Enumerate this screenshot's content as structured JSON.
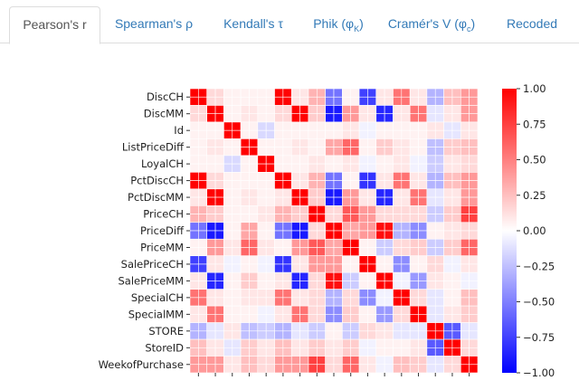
{
  "tabs": [
    {
      "label": "Pearson's r",
      "active": true
    },
    {
      "label": "Spearman's ρ",
      "active": false
    },
    {
      "label": "Kendall's τ",
      "active": false
    },
    {
      "label": "Phik (φ",
      "sub": "K",
      "suffix": ")",
      "active": false
    },
    {
      "label": "Cramér's V (φ",
      "sub": "c",
      "suffix": ")",
      "active": false
    },
    {
      "label": "Recoded",
      "active": false
    }
  ],
  "colors": {
    "tab_link": "#337ab7",
    "tab_active": "#555555",
    "positive": "#ff0000",
    "neutral": "#ffffff",
    "negative": "#0000ff"
  },
  "chart_data": {
    "type": "heatmap",
    "title": "",
    "rows": [
      "DiscCH",
      "DiscMM",
      "Id",
      "ListPriceDiff",
      "LoyalCH",
      "PctDiscCH",
      "PctDiscMM",
      "PriceCH",
      "PriceDiff",
      "PriceMM",
      "SalePriceCH",
      "SalePriceMM",
      "SpecialCH",
      "SpecialMM",
      "STORE",
      "StoreID",
      "WeekofPurchase"
    ],
    "cells_per_variable": 2,
    "colorbar": {
      "min": -1.0,
      "max": 1.0,
      "ticks": [
        "1.00",
        "0.75",
        "0.50",
        "0.25",
        "0.00",
        "−0.25",
        "−0.50",
        "−0.75",
        "−1.00"
      ],
      "tick_values": [
        1.0,
        0.75,
        0.5,
        0.25,
        0.0,
        -0.25,
        -0.5,
        -0.75,
        -1.0
      ]
    },
    "colormap": "bwr",
    "grid": true,
    "matrix": [
      [
        1.0,
        0.15,
        0.05,
        0.05,
        0.05,
        0.99,
        0.1,
        0.3,
        -0.55,
        0.05,
        -0.75,
        0.1,
        0.55,
        0.1,
        -0.3,
        0.25,
        0.4
      ],
      [
        0.15,
        1.0,
        0.05,
        0.1,
        0.05,
        0.15,
        0.99,
        0.2,
        -0.9,
        0.4,
        0.1,
        -0.85,
        0.1,
        0.55,
        -0.1,
        0.1,
        0.4
      ],
      [
        0.05,
        0.05,
        1.0,
        0.05,
        -0.15,
        0.05,
        0.05,
        0.05,
        0.05,
        0.1,
        -0.05,
        0.05,
        0.05,
        0.05,
        0.1,
        -0.1,
        0.1
      ],
      [
        0.05,
        0.1,
        0.05,
        1.0,
        0.05,
        0.05,
        0.1,
        0.05,
        0.35,
        0.6,
        0.05,
        0.2,
        0.1,
        0.05,
        -0.25,
        0.2,
        0.25
      ],
      [
        0.05,
        0.05,
        -0.15,
        0.05,
        1.0,
        0.05,
        0.05,
        0.1,
        0.05,
        0.1,
        -0.05,
        0.05,
        0.1,
        -0.05,
        -0.2,
        0.1,
        0.15
      ],
      [
        0.99,
        0.15,
        0.05,
        0.05,
        0.05,
        1.0,
        0.1,
        0.3,
        -0.55,
        0.05,
        -0.8,
        0.1,
        0.55,
        0.1,
        -0.3,
        0.25,
        0.4
      ],
      [
        0.1,
        0.99,
        0.05,
        0.1,
        0.05,
        0.1,
        1.0,
        0.2,
        -0.9,
        0.4,
        0.1,
        -0.85,
        0.1,
        0.55,
        -0.1,
        0.1,
        0.4
      ],
      [
        0.3,
        0.2,
        0.05,
        0.05,
        0.1,
        0.3,
        0.2,
        1.0,
        0.15,
        0.65,
        0.4,
        0.15,
        0.15,
        0.15,
        -0.2,
        0.2,
        0.75
      ],
      [
        -0.55,
        -0.9,
        0.05,
        0.35,
        0.05,
        -0.55,
        -0.9,
        0.15,
        1.0,
        0.35,
        0.4,
        0.95,
        -0.3,
        -0.45,
        0.05,
        0.1,
        0.15
      ],
      [
        0.05,
        0.4,
        0.1,
        0.6,
        0.1,
        0.05,
        0.4,
        0.65,
        0.35,
        1.0,
        0.05,
        -0.2,
        0.15,
        0.2,
        -0.2,
        0.2,
        0.6
      ],
      [
        -0.75,
        0.1,
        -0.05,
        0.05,
        -0.05,
        -0.8,
        0.1,
        0.4,
        0.4,
        0.05,
        1.0,
        0.05,
        -0.45,
        0.05,
        0.15,
        -0.05,
        0.1
      ],
      [
        0.1,
        -0.85,
        0.05,
        0.2,
        0.05,
        0.1,
        -0.85,
        0.15,
        0.95,
        -0.2,
        0.05,
        1.0,
        -0.05,
        -0.4,
        0.1,
        0.05,
        -0.05
      ],
      [
        0.55,
        0.1,
        0.05,
        0.1,
        0.1,
        0.55,
        0.1,
        0.15,
        -0.3,
        0.15,
        -0.45,
        -0.05,
        1.0,
        0.15,
        -0.1,
        0.05,
        0.25
      ],
      [
        0.1,
        0.55,
        0.05,
        0.05,
        -0.05,
        0.1,
        0.55,
        0.15,
        -0.45,
        0.2,
        0.05,
        -0.4,
        0.15,
        1.0,
        -0.1,
        0.1,
        0.2
      ],
      [
        -0.3,
        -0.1,
        0.1,
        -0.25,
        -0.2,
        -0.3,
        -0.1,
        -0.2,
        0.05,
        -0.2,
        0.15,
        0.1,
        -0.1,
        -0.1,
        1.0,
        -0.65,
        -0.1
      ],
      [
        0.25,
        0.1,
        -0.1,
        0.2,
        0.1,
        0.25,
        0.1,
        0.2,
        0.1,
        0.2,
        -0.05,
        0.05,
        0.05,
        0.1,
        -0.65,
        1.0,
        0.15
      ],
      [
        0.4,
        0.4,
        0.1,
        0.25,
        0.15,
        0.4,
        0.4,
        0.75,
        0.15,
        0.6,
        0.1,
        -0.05,
        0.25,
        0.2,
        -0.1,
        0.15,
        1.0
      ]
    ]
  }
}
